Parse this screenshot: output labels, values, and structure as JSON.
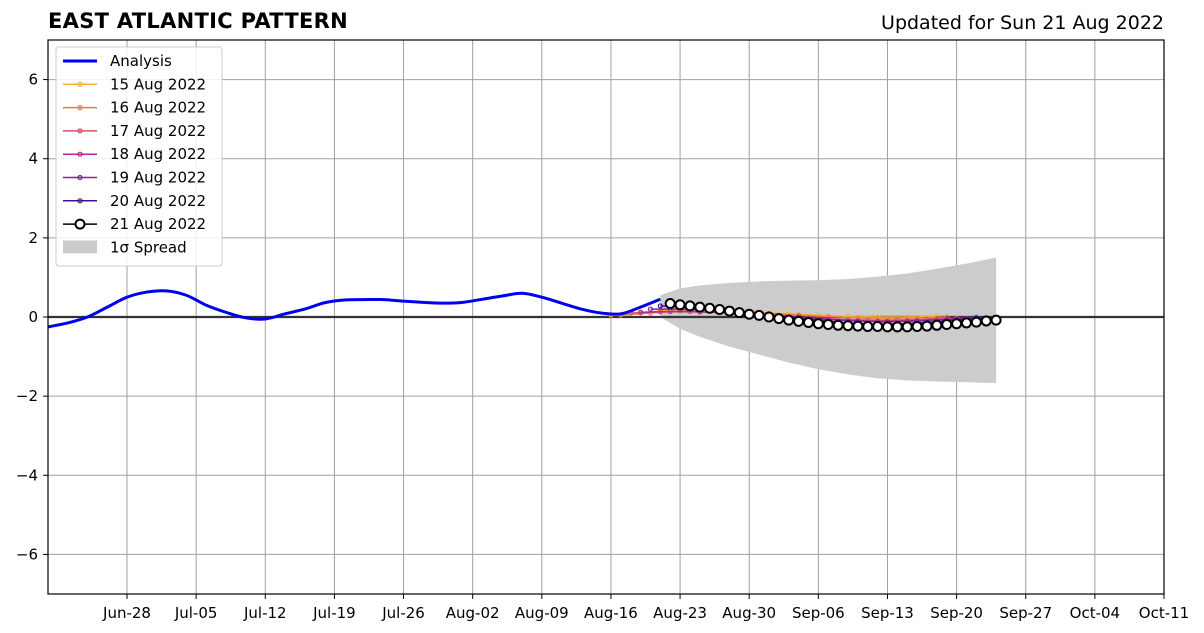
{
  "header": {
    "title": "EAST ATLANTIC PATTERN",
    "updated": "Updated for Sun 21 Aug 2022"
  },
  "chart_data": {
    "type": "line",
    "title": "EAST ATLANTIC PATTERN",
    "subtitle": "Updated for Sun 21 Aug 2022",
    "xlabel": "",
    "ylabel": "",
    "ylim": [
      -7,
      7
    ],
    "xlim": [
      "2022-06-20",
      "2022-10-11"
    ],
    "yticks": [
      -6,
      -4,
      -2,
      0,
      2,
      4,
      6
    ],
    "ytick_labels": [
      "−6",
      "−4",
      "−2",
      "0",
      "2",
      "4",
      "6"
    ],
    "xticks": [
      "2022-06-28",
      "2022-07-05",
      "2022-07-12",
      "2022-07-19",
      "2022-07-26",
      "2022-08-02",
      "2022-08-09",
      "2022-08-16",
      "2022-08-23",
      "2022-08-30",
      "2022-09-06",
      "2022-09-13",
      "2022-09-20",
      "2022-09-27",
      "2022-10-04",
      "2022-10-11"
    ],
    "xtick_labels": [
      "Jun-28",
      "Jul-05",
      "Jul-12",
      "Jul-19",
      "Jul-26",
      "Aug-02",
      "Aug-09",
      "Aug-16",
      "Aug-23",
      "Aug-30",
      "Sep-06",
      "Sep-13",
      "Sep-20",
      "Sep-27",
      "Oct-04",
      "Oct-11"
    ],
    "grid": true,
    "legend_position": "top-left",
    "analysis": {
      "name": "Analysis",
      "color": "#0000ee",
      "x": [
        "2022-06-20",
        "2022-06-22",
        "2022-06-24",
        "2022-06-26",
        "2022-06-28",
        "2022-06-30",
        "2022-07-02",
        "2022-07-04",
        "2022-07-06",
        "2022-07-08",
        "2022-07-10",
        "2022-07-12",
        "2022-07-14",
        "2022-07-16",
        "2022-07-18",
        "2022-07-20",
        "2022-07-22",
        "2022-07-24",
        "2022-07-26",
        "2022-07-28",
        "2022-07-30",
        "2022-08-01",
        "2022-08-03",
        "2022-08-05",
        "2022-08-07",
        "2022-08-09",
        "2022-08-11",
        "2022-08-13",
        "2022-08-15",
        "2022-08-17",
        "2022-08-19",
        "2022-08-21"
      ],
      "y": [
        -0.25,
        -0.15,
        0.0,
        0.25,
        0.5,
        0.63,
        0.66,
        0.55,
        0.3,
        0.12,
        -0.02,
        -0.05,
        0.08,
        0.2,
        0.36,
        0.43,
        0.44,
        0.44,
        0.4,
        0.37,
        0.35,
        0.37,
        0.45,
        0.53,
        0.6,
        0.5,
        0.35,
        0.2,
        0.1,
        0.08,
        0.25,
        0.45
      ]
    },
    "spread": {
      "name": "1σ Spread",
      "color": "#cccccc",
      "x": [
        "2022-08-21",
        "2022-08-23",
        "2022-08-25",
        "2022-08-28",
        "2022-08-31",
        "2022-09-03",
        "2022-09-06",
        "2022-09-09",
        "2022-09-12",
        "2022-09-15",
        "2022-09-18",
        "2022-09-21",
        "2022-09-24"
      ],
      "upper": [
        0.55,
        0.72,
        0.8,
        0.86,
        0.9,
        0.92,
        0.93,
        0.96,
        1.02,
        1.1,
        1.22,
        1.35,
        1.5
      ],
      "lower": [
        0.0,
        -0.3,
        -0.5,
        -0.75,
        -0.95,
        -1.15,
        -1.32,
        -1.45,
        -1.55,
        -1.6,
        -1.63,
        -1.65,
        -1.67
      ]
    },
    "series": [
      {
        "name": "15 Aug 2022",
        "color": "#fdb030",
        "marker": "small",
        "x": [
          "2022-08-16",
          "2022-08-19",
          "2022-08-22",
          "2022-08-25",
          "2022-08-28",
          "2022-08-31",
          "2022-09-03",
          "2022-09-06",
          "2022-09-09",
          "2022-09-12",
          "2022-09-15",
          "2022-09-18"
        ],
        "y": [
          0.05,
          0.1,
          0.18,
          0.2,
          0.17,
          0.12,
          0.08,
          0.04,
          0.02,
          0.0,
          0.0,
          0.02
        ]
      },
      {
        "name": "16 Aug 2022",
        "color": "#f37b3d",
        "marker": "small",
        "x": [
          "2022-08-17",
          "2022-08-20",
          "2022-08-23",
          "2022-08-26",
          "2022-08-29",
          "2022-09-01",
          "2022-09-04",
          "2022-09-07",
          "2022-09-10",
          "2022-09-13",
          "2022-09-16",
          "2022-09-19"
        ],
        "y": [
          0.05,
          0.1,
          0.15,
          0.17,
          0.14,
          0.09,
          0.05,
          0.01,
          -0.02,
          -0.03,
          -0.02,
          0.0
        ]
      },
      {
        "name": "17 Aug 2022",
        "color": "#d5536a",
        "marker": "small",
        "x": [
          "2022-08-18",
          "2022-08-21",
          "2022-08-24",
          "2022-08-27",
          "2022-08-30",
          "2022-09-02",
          "2022-09-05",
          "2022-09-08",
          "2022-09-11",
          "2022-09-14",
          "2022-09-17",
          "2022-09-20"
        ],
        "y": [
          0.1,
          0.13,
          0.14,
          0.12,
          0.08,
          0.03,
          -0.02,
          -0.06,
          -0.08,
          -0.08,
          -0.06,
          -0.03
        ]
      },
      {
        "name": "18 Aug 2022",
        "color": "#b02a8f",
        "marker": "small",
        "x": [
          "2022-08-19",
          "2022-08-22",
          "2022-08-25",
          "2022-08-28",
          "2022-08-31",
          "2022-09-03",
          "2022-09-06",
          "2022-09-09",
          "2022-09-12",
          "2022-09-15",
          "2022-09-18",
          "2022-09-21"
        ],
        "y": [
          0.12,
          0.14,
          0.13,
          0.1,
          0.05,
          0.0,
          -0.05,
          -0.09,
          -0.11,
          -0.1,
          -0.07,
          -0.03
        ]
      },
      {
        "name": "19 Aug 2022",
        "color": "#8a1fa3",
        "marker": "small",
        "x": [
          "2022-08-20",
          "2022-08-23",
          "2022-08-26",
          "2022-08-29",
          "2022-09-01",
          "2022-09-04",
          "2022-09-07",
          "2022-09-10",
          "2022-09-13",
          "2022-09-16",
          "2022-09-19",
          "2022-09-22"
        ],
        "y": [
          0.2,
          0.2,
          0.17,
          0.12,
          0.06,
          0.0,
          -0.06,
          -0.1,
          -0.12,
          -0.1,
          -0.06,
          -0.01
        ]
      },
      {
        "name": "20 Aug 2022",
        "color": "#4a0c8f",
        "marker": "small",
        "x": [
          "2022-08-21",
          "2022-08-24",
          "2022-08-27",
          "2022-08-30",
          "2022-09-02",
          "2022-09-05",
          "2022-09-08",
          "2022-09-11",
          "2022-09-14",
          "2022-09-17",
          "2022-09-20",
          "2022-09-23"
        ],
        "y": [
          0.28,
          0.24,
          0.18,
          0.1,
          0.02,
          -0.06,
          -0.13,
          -0.18,
          -0.18,
          -0.14,
          -0.08,
          -0.02
        ]
      },
      {
        "name": "21 Aug 2022",
        "color": "#000000",
        "marker": "large",
        "x": [
          "2022-08-22",
          "2022-08-23",
          "2022-08-24",
          "2022-08-25",
          "2022-08-26",
          "2022-08-27",
          "2022-08-28",
          "2022-08-29",
          "2022-08-30",
          "2022-08-31",
          "2022-09-01",
          "2022-09-02",
          "2022-09-03",
          "2022-09-04",
          "2022-09-05",
          "2022-09-06",
          "2022-09-07",
          "2022-09-08",
          "2022-09-09",
          "2022-09-10",
          "2022-09-11",
          "2022-09-12",
          "2022-09-13",
          "2022-09-14",
          "2022-09-15",
          "2022-09-16",
          "2022-09-17",
          "2022-09-18",
          "2022-09-19",
          "2022-09-20",
          "2022-09-21",
          "2022-09-22",
          "2022-09-23",
          "2022-09-24"
        ],
        "y": [
          0.34,
          0.31,
          0.28,
          0.25,
          0.22,
          0.19,
          0.15,
          0.11,
          0.07,
          0.04,
          0.0,
          -0.04,
          -0.08,
          -0.11,
          -0.14,
          -0.17,
          -0.19,
          -0.21,
          -0.22,
          -0.23,
          -0.24,
          -0.24,
          -0.25,
          -0.25,
          -0.25,
          -0.24,
          -0.23,
          -0.21,
          -0.19,
          -0.17,
          -0.15,
          -0.13,
          -0.1,
          -0.08
        ]
      }
    ]
  }
}
